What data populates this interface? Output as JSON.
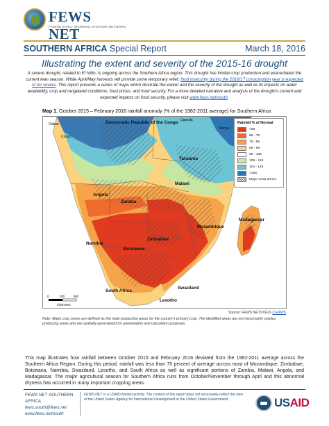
{
  "header": {
    "logo_text": "FEWS NET",
    "logo_subtitle": "FAMINE EARLY WARNING SYSTEMS NETWORK",
    "region": "SOUTHERN AFRICA",
    "report_type": "Special Report",
    "date": "March 18, 2016",
    "title": "Illustrating the extent and severity of the 2015-16 drought"
  },
  "summary": {
    "part1": "A severe drought, related to El Niño, is ongoing across the Southern Africa region. This drought has limited crop production and exacerbated the current lean season. While April/May harvests will provide some temporary relief, ",
    "link": "food insecurity during the 2016/17 consumption year is expected to be severe",
    "part2": ". This report presents a series of maps which illustrate the extent and the severity of the drought as well as its impacts on water availability, crop and rangeland conditions, food prices, and food security. For a more detailed narrative and analysis of the drought's current and expected impacts on food security, please visit ",
    "site": "www.fews.net/south",
    "part3": "."
  },
  "map": {
    "caption_bold": "Map 1.",
    "caption": " October 2015 – February 2016 rainfall anomaly (% of the 1982-2011 average) for Southern Africa",
    "labels": {
      "gabon": "Gabon",
      "congo": "Congo",
      "drc": "Democratic Republic of the Congo",
      "uganda": "Uganda",
      "kenya": "Kenya",
      "tanzania": "Tanzania",
      "angola": "Angola",
      "zambia": "Zambia",
      "malawi": "Malawi",
      "namibia": "Namibia",
      "botswana": "Botswana",
      "zimbabwe": "Zimbabwe",
      "mozambique": "Mozambique",
      "madagascar": "Madagascar",
      "south_africa": "South Africa",
      "swaziland": "Swaziland",
      "lesotho": "Lesotho"
    },
    "scale": {
      "zero": "0",
      "mid": "250",
      "end": "500",
      "unit": "Kilometers"
    },
    "legend": {
      "title": "Rainfall % of Normal",
      "items": [
        {
          "label": "<65",
          "color": "#e03a21"
        },
        {
          "label": "65 - 75",
          "color": "#f06c2e"
        },
        {
          "label": "75 - 85",
          "color": "#f6a44a"
        },
        {
          "label": "85 - 95",
          "color": "#fbd37f"
        },
        {
          "label": "95 - 105",
          "color": "#ffffff"
        },
        {
          "label": "105 - 115",
          "color": "#c6e6a1"
        },
        {
          "label": "115 - 125",
          "color": "#6cc4d4"
        },
        {
          "label": ">125",
          "color": "#2f74b5"
        },
        {
          "label": "Major Crop Zones",
          "color": "hatch"
        }
      ]
    },
    "source_prefix": "Source: FEWS NET/USGS ",
    "source_link": "CHIRPS",
    "note": "Note: Major crop zones are defined as the main production areas for the country's primary crop. The identified areas are not necessarily surplus producing areas and are spatially generalized for presentation and calculation purposes."
  },
  "body": {
    "text": "This map illustrates how rainfall between October 2015 and February 2016 deviated from the 1982-2011 average across the Southern Africa Region. During this period, rainfall was less than 75 percent of average across most of Mozambique, Zimbabwe, Botswana, Namibia, Swaziland, Lesotho, and South Africa as well as significant portions of Zambia, Malawi, Angola, and Madagascar. The major agricultural season for Southern Africa runs from October/November through April and this abnormal dryness has occurred in many important cropping areas."
  },
  "footer": {
    "org": "FEWS NET SOUTHERN AFRICA",
    "email": "fews.south@fews.net",
    "web": "www.fews.net/south",
    "disclaimer": "FEWS NET is a USAID-funded activity. The content of this report does not necessarily reflect the view of the United States Agency for International Development or the United States Government.",
    "agency_logo_us": "US",
    "agency_logo_aid": "AID"
  }
}
